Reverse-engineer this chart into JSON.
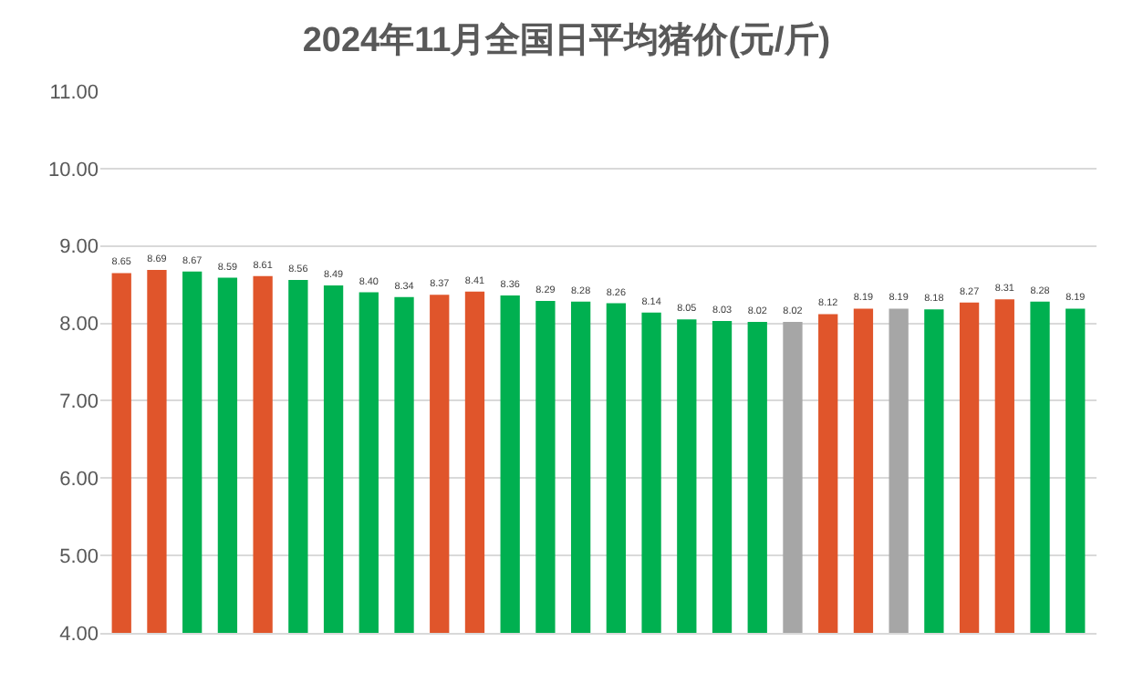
{
  "chart_data": {
    "type": "bar",
    "title": "2024年11月全国日平均猪价(元/斤)",
    "categories": [
      null,
      null,
      null,
      null,
      null,
      null,
      null,
      null,
      null,
      null,
      null,
      null,
      null,
      null,
      null,
      null,
      null,
      null,
      null,
      null,
      null,
      null,
      null,
      null,
      null,
      null,
      null,
      null
    ],
    "values": [
      8.65,
      8.69,
      8.67,
      8.59,
      8.61,
      8.56,
      8.49,
      8.4,
      8.34,
      8.37,
      8.41,
      8.36,
      8.29,
      8.28,
      8.26,
      8.14,
      8.05,
      8.03,
      8.02,
      8.02,
      8.12,
      8.19,
      8.19,
      8.18,
      8.27,
      8.31,
      8.28,
      8.19
    ],
    "value_labels": [
      "8.65",
      "8.69",
      "8.67",
      "8.59",
      "8.61",
      "8.56",
      "8.49",
      "8.40",
      "8.34",
      "8.37",
      "8.41",
      "8.36",
      "8.29",
      "8.28",
      "8.26",
      "8.14",
      "8.05",
      "8.03",
      "8.02",
      "8.02",
      "8.12",
      "8.19",
      "8.19",
      "8.18",
      "8.27",
      "8.31",
      "8.28",
      "8.19"
    ],
    "colors": [
      "#e0552b",
      "#e0552b",
      "#00b050",
      "#00b050",
      "#e0552b",
      "#00b050",
      "#00b050",
      "#00b050",
      "#00b050",
      "#e0552b",
      "#e0552b",
      "#00b050",
      "#00b050",
      "#00b050",
      "#00b050",
      "#00b050",
      "#00b050",
      "#00b050",
      "#00b050",
      "#a6a6a6",
      "#e0552b",
      "#e0552b",
      "#a6a6a6",
      "#00b050",
      "#e0552b",
      "#e0552b",
      "#00b050",
      "#00b050"
    ],
    "ylim": [
      4,
      11
    ],
    "yticks": [
      {
        "value": 4,
        "label": "4.00"
      },
      {
        "value": 5,
        "label": "5.00"
      },
      {
        "value": 6,
        "label": "6.00"
      },
      {
        "value": 7,
        "label": "7.00"
      },
      {
        "value": 8,
        "label": "8.00"
      },
      {
        "value": 9,
        "label": "9.00"
      },
      {
        "value": 10,
        "label": "10.00"
      },
      {
        "value": 11,
        "label": "11.00"
      }
    ],
    "grid": "y",
    "tick_labels": "y"
  }
}
